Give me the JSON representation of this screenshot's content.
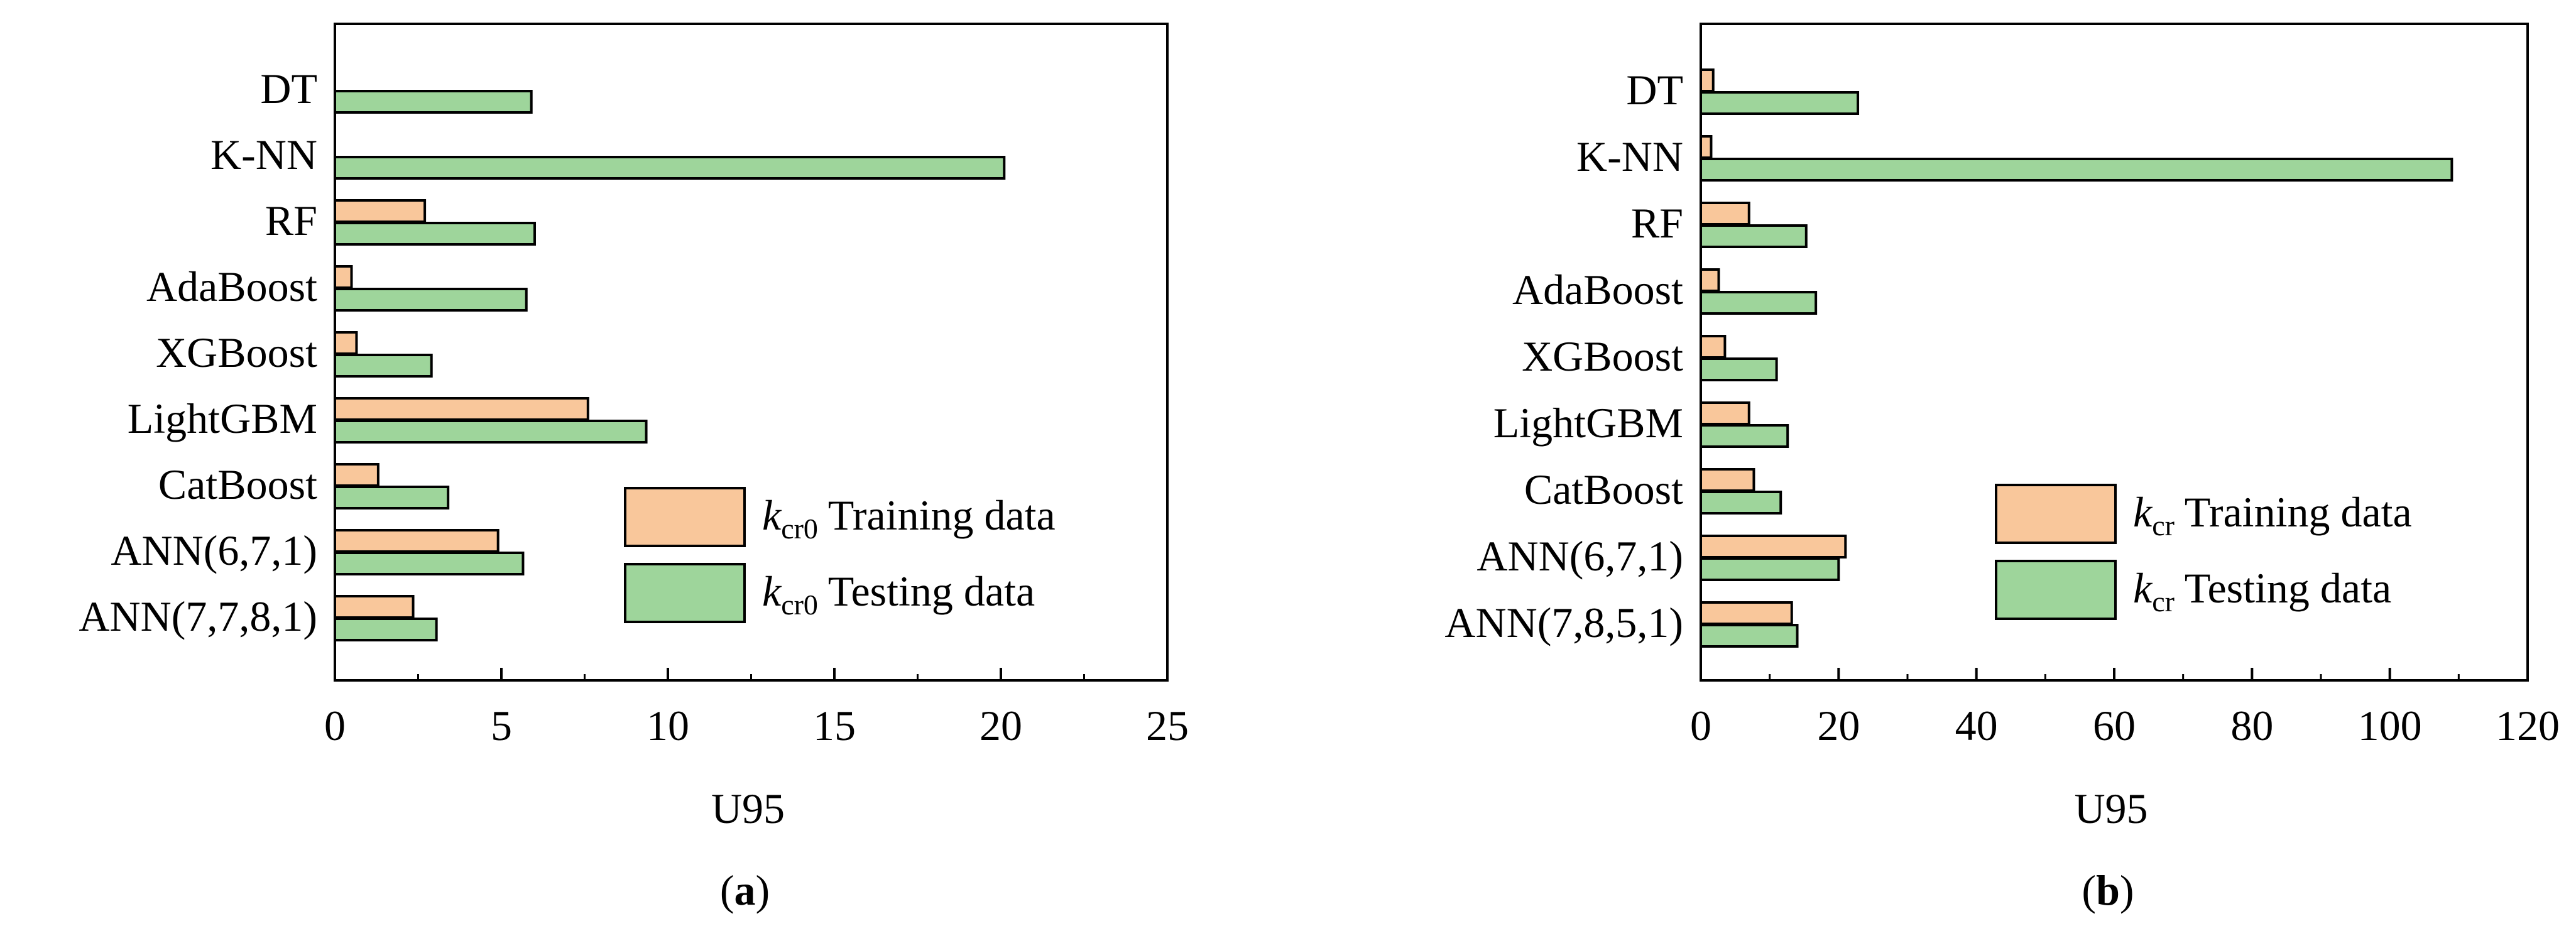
{
  "colors": {
    "training": "#F9C79B",
    "testing": "#9ED59B",
    "stroke": "#000000"
  },
  "chart_data": [
    {
      "type": "bar",
      "orientation": "horizontal",
      "panel_label": "a",
      "categories": [
        "DT",
        "K-NN",
        "RF",
        "AdaBoost",
        "XGBoost",
        "LightGBM",
        "CatBoost",
        "ANN(6,7,1)",
        "ANN(7,7,8,1)"
      ],
      "series": [
        {
          "name": "Training data",
          "symbol": "k",
          "subscript": "cr0",
          "color_key": "training",
          "values": [
            0,
            0,
            2.7,
            0.5,
            0.65,
            7.6,
            1.3,
            4.9,
            2.35
          ]
        },
        {
          "name": "Testing data",
          "symbol": "k",
          "subscript": "cr0",
          "color_key": "testing",
          "values": [
            5.9,
            20.1,
            6.0,
            5.75,
            2.9,
            9.35,
            3.4,
            5.65,
            3.05
          ]
        }
      ],
      "xlabel": "U95",
      "xlim": [
        0,
        25
      ],
      "xticks": [
        "0",
        "5",
        "10",
        "15",
        "20",
        "25"
      ],
      "xtick_values": [
        0,
        5,
        10,
        15,
        20,
        25
      ],
      "legend_position": "bottom-right"
    },
    {
      "type": "bar",
      "orientation": "horizontal",
      "panel_label": "b",
      "categories": [
        "DT",
        "K-NN",
        "RF",
        "AdaBoost",
        "XGBoost",
        "LightGBM",
        "CatBoost",
        "ANN(6,7,1)",
        "ANN(7,8,5,1)"
      ],
      "series": [
        {
          "name": "Training data",
          "symbol": "k",
          "subscript": "cr",
          "color_key": "training",
          "values": [
            1.8,
            1.5,
            7.0,
            2.6,
            3.5,
            7.0,
            7.7,
            21.0,
            13.2
          ]
        },
        {
          "name": "Testing data",
          "symbol": "k",
          "subscript": "cr",
          "color_key": "testing",
          "values": [
            22.8,
            109.0,
            15.3,
            16.7,
            11.0,
            12.6,
            11.6,
            20.0,
            14.0
          ]
        }
      ],
      "xlabel": "U95",
      "xlim": [
        0,
        120
      ],
      "xticks": [
        "0",
        "20",
        "40",
        "60",
        "80",
        "100",
        "120"
      ],
      "xtick_values": [
        0,
        20,
        40,
        60,
        80,
        100,
        120
      ],
      "legend_position": "bottom-right"
    }
  ]
}
